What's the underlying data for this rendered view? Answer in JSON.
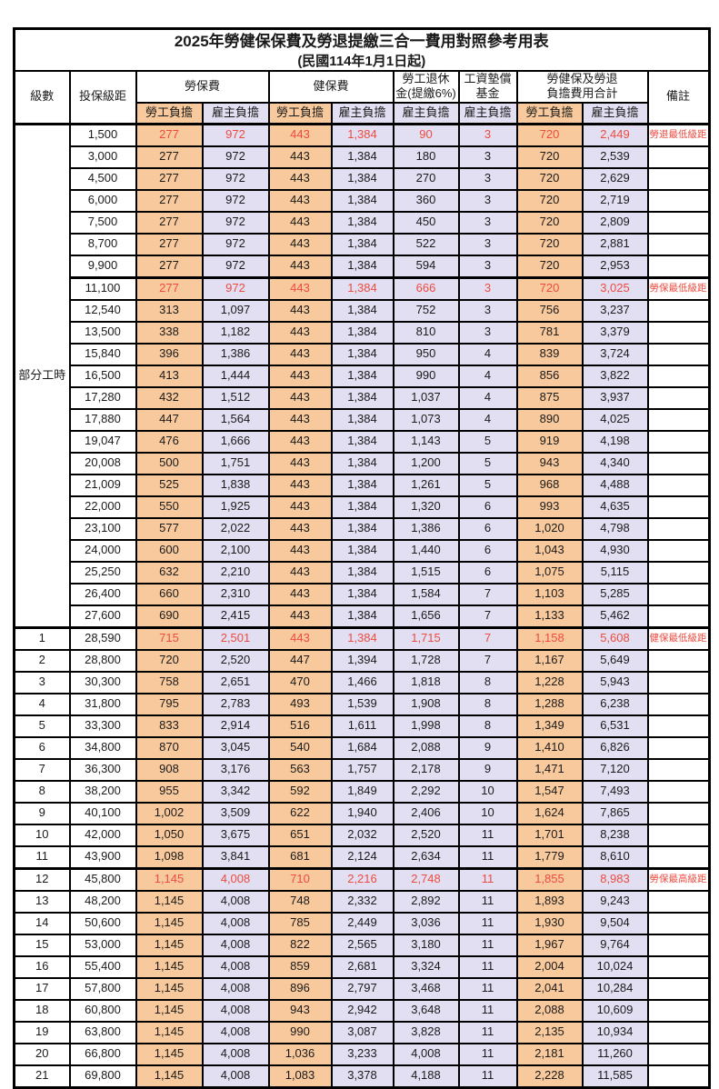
{
  "title": "2025年勞健保保費及勞退提繳三合一費用對照參考用表",
  "subtitle": "(民國114年1月1日起)",
  "colors": {
    "employee_col_bg": "#f8c99c",
    "employer_col_bg": "#e2dff2",
    "highlight_red": "#ee4b40",
    "border": "#000000"
  },
  "header": {
    "level": "級數",
    "bracket": "投保級距",
    "labor_insurance": "勞保費",
    "health_insurance": "健保費",
    "pension_line1": "勞工退休",
    "pension_line2": "金(提繳6%)",
    "wage_fund_line1": "工資墊償",
    "wage_fund_line2": "基金",
    "total_line1": "勞健保及勞退",
    "total_line2": "負擔費用合計",
    "employee": "勞工負擔",
    "employer": "雇主負擔",
    "remark": "備註"
  },
  "part_time_label": "部分工時",
  "part_time_row_count": 23,
  "rows": [
    {
      "level": "",
      "bracket": "1,500",
      "li_emp": "277",
      "li_er": "972",
      "hi_emp": "443",
      "hi_er": "1,384",
      "pension": "90",
      "fund": "3",
      "tot_emp": "720",
      "tot_er": "2,449",
      "remark": "勞退最低級距",
      "red": true
    },
    {
      "level": "",
      "bracket": "3,000",
      "li_emp": "277",
      "li_er": "972",
      "hi_emp": "443",
      "hi_er": "1,384",
      "pension": "180",
      "fund": "3",
      "tot_emp": "720",
      "tot_er": "2,539",
      "remark": "",
      "red": false
    },
    {
      "level": "",
      "bracket": "4,500",
      "li_emp": "277",
      "li_er": "972",
      "hi_emp": "443",
      "hi_er": "1,384",
      "pension": "270",
      "fund": "3",
      "tot_emp": "720",
      "tot_er": "2,629",
      "remark": "",
      "red": false
    },
    {
      "level": "",
      "bracket": "6,000",
      "li_emp": "277",
      "li_er": "972",
      "hi_emp": "443",
      "hi_er": "1,384",
      "pension": "360",
      "fund": "3",
      "tot_emp": "720",
      "tot_er": "2,719",
      "remark": "",
      "red": false
    },
    {
      "level": "",
      "bracket": "7,500",
      "li_emp": "277",
      "li_er": "972",
      "hi_emp": "443",
      "hi_er": "1,384",
      "pension": "450",
      "fund": "3",
      "tot_emp": "720",
      "tot_er": "2,809",
      "remark": "",
      "red": false
    },
    {
      "level": "",
      "bracket": "8,700",
      "li_emp": "277",
      "li_er": "972",
      "hi_emp": "443",
      "hi_er": "1,384",
      "pension": "522",
      "fund": "3",
      "tot_emp": "720",
      "tot_er": "2,881",
      "remark": "",
      "red": false
    },
    {
      "level": "",
      "bracket": "9,900",
      "li_emp": "277",
      "li_er": "972",
      "hi_emp": "443",
      "hi_er": "1,384",
      "pension": "594",
      "fund": "3",
      "tot_emp": "720",
      "tot_er": "2,953",
      "remark": "",
      "red": false
    },
    {
      "level": "",
      "bracket": "11,100",
      "li_emp": "277",
      "li_er": "972",
      "hi_emp": "443",
      "hi_er": "1,384",
      "pension": "666",
      "fund": "3",
      "tot_emp": "720",
      "tot_er": "3,025",
      "remark": "勞保最低級距",
      "red": true
    },
    {
      "level": "",
      "bracket": "12,540",
      "li_emp": "313",
      "li_er": "1,097",
      "hi_emp": "443",
      "hi_er": "1,384",
      "pension": "752",
      "fund": "3",
      "tot_emp": "756",
      "tot_er": "3,237",
      "remark": "",
      "red": false
    },
    {
      "level": "",
      "bracket": "13,500",
      "li_emp": "338",
      "li_er": "1,182",
      "hi_emp": "443",
      "hi_er": "1,384",
      "pension": "810",
      "fund": "3",
      "tot_emp": "781",
      "tot_er": "3,379",
      "remark": "",
      "red": false
    },
    {
      "level": "",
      "bracket": "15,840",
      "li_emp": "396",
      "li_er": "1,386",
      "hi_emp": "443",
      "hi_er": "1,384",
      "pension": "950",
      "fund": "4",
      "tot_emp": "839",
      "tot_er": "3,724",
      "remark": "",
      "red": false
    },
    {
      "level": "",
      "bracket": "16,500",
      "li_emp": "413",
      "li_er": "1,444",
      "hi_emp": "443",
      "hi_er": "1,384",
      "pension": "990",
      "fund": "4",
      "tot_emp": "856",
      "tot_er": "3,822",
      "remark": "",
      "red": false
    },
    {
      "level": "",
      "bracket": "17,280",
      "li_emp": "432",
      "li_er": "1,512",
      "hi_emp": "443",
      "hi_er": "1,384",
      "pension": "1,037",
      "fund": "4",
      "tot_emp": "875",
      "tot_er": "3,937",
      "remark": "",
      "red": false
    },
    {
      "level": "",
      "bracket": "17,880",
      "li_emp": "447",
      "li_er": "1,564",
      "hi_emp": "443",
      "hi_er": "1,384",
      "pension": "1,073",
      "fund": "4",
      "tot_emp": "890",
      "tot_er": "4,025",
      "remark": "",
      "red": false
    },
    {
      "level": "",
      "bracket": "19,047",
      "li_emp": "476",
      "li_er": "1,666",
      "hi_emp": "443",
      "hi_er": "1,384",
      "pension": "1,143",
      "fund": "5",
      "tot_emp": "919",
      "tot_er": "4,198",
      "remark": "",
      "red": false
    },
    {
      "level": "",
      "bracket": "20,008",
      "li_emp": "500",
      "li_er": "1,751",
      "hi_emp": "443",
      "hi_er": "1,384",
      "pension": "1,200",
      "fund": "5",
      "tot_emp": "943",
      "tot_er": "4,340",
      "remark": "",
      "red": false
    },
    {
      "level": "",
      "bracket": "21,009",
      "li_emp": "525",
      "li_er": "1,838",
      "hi_emp": "443",
      "hi_er": "1,384",
      "pension": "1,261",
      "fund": "5",
      "tot_emp": "968",
      "tot_er": "4,488",
      "remark": "",
      "red": false
    },
    {
      "level": "",
      "bracket": "22,000",
      "li_emp": "550",
      "li_er": "1,925",
      "hi_emp": "443",
      "hi_er": "1,384",
      "pension": "1,320",
      "fund": "6",
      "tot_emp": "993",
      "tot_er": "4,635",
      "remark": "",
      "red": false
    },
    {
      "level": "",
      "bracket": "23,100",
      "li_emp": "577",
      "li_er": "2,022",
      "hi_emp": "443",
      "hi_er": "1,384",
      "pension": "1,386",
      "fund": "6",
      "tot_emp": "1,020",
      "tot_er": "4,798",
      "remark": "",
      "red": false
    },
    {
      "level": "",
      "bracket": "24,000",
      "li_emp": "600",
      "li_er": "2,100",
      "hi_emp": "443",
      "hi_er": "1,384",
      "pension": "1,440",
      "fund": "6",
      "tot_emp": "1,043",
      "tot_er": "4,930",
      "remark": "",
      "red": false
    },
    {
      "level": "",
      "bracket": "25,250",
      "li_emp": "632",
      "li_er": "2,210",
      "hi_emp": "443",
      "hi_er": "1,384",
      "pension": "1,515",
      "fund": "6",
      "tot_emp": "1,075",
      "tot_er": "5,115",
      "remark": "",
      "red": false
    },
    {
      "level": "",
      "bracket": "26,400",
      "li_emp": "660",
      "li_er": "2,310",
      "hi_emp": "443",
      "hi_er": "1,384",
      "pension": "1,584",
      "fund": "7",
      "tot_emp": "1,103",
      "tot_er": "5,285",
      "remark": "",
      "red": false
    },
    {
      "level": "",
      "bracket": "27,600",
      "li_emp": "690",
      "li_er": "2,415",
      "hi_emp": "443",
      "hi_er": "1,384",
      "pension": "1,656",
      "fund": "7",
      "tot_emp": "1,133",
      "tot_er": "5,462",
      "remark": "",
      "red": false
    },
    {
      "level": "1",
      "bracket": "28,590",
      "li_emp": "715",
      "li_er": "2,501",
      "hi_emp": "443",
      "hi_er": "1,384",
      "pension": "1,715",
      "fund": "7",
      "tot_emp": "1,158",
      "tot_er": "5,608",
      "remark": "健保最低級距",
      "red": true
    },
    {
      "level": "2",
      "bracket": "28,800",
      "li_emp": "720",
      "li_er": "2,520",
      "hi_emp": "447",
      "hi_er": "1,394",
      "pension": "1,728",
      "fund": "7",
      "tot_emp": "1,167",
      "tot_er": "5,649",
      "remark": "",
      "red": false
    },
    {
      "level": "3",
      "bracket": "30,300",
      "li_emp": "758",
      "li_er": "2,651",
      "hi_emp": "470",
      "hi_er": "1,466",
      "pension": "1,818",
      "fund": "8",
      "tot_emp": "1,228",
      "tot_er": "5,943",
      "remark": "",
      "red": false
    },
    {
      "level": "4",
      "bracket": "31,800",
      "li_emp": "795",
      "li_er": "2,783",
      "hi_emp": "493",
      "hi_er": "1,539",
      "pension": "1,908",
      "fund": "8",
      "tot_emp": "1,288",
      "tot_er": "6,238",
      "remark": "",
      "red": false
    },
    {
      "level": "5",
      "bracket": "33,300",
      "li_emp": "833",
      "li_er": "2,914",
      "hi_emp": "516",
      "hi_er": "1,611",
      "pension": "1,998",
      "fund": "8",
      "tot_emp": "1,349",
      "tot_er": "6,531",
      "remark": "",
      "red": false
    },
    {
      "level": "6",
      "bracket": "34,800",
      "li_emp": "870",
      "li_er": "3,045",
      "hi_emp": "540",
      "hi_er": "1,684",
      "pension": "2,088",
      "fund": "9",
      "tot_emp": "1,410",
      "tot_er": "6,826",
      "remark": "",
      "red": false
    },
    {
      "level": "7",
      "bracket": "36,300",
      "li_emp": "908",
      "li_er": "3,176",
      "hi_emp": "563",
      "hi_er": "1,757",
      "pension": "2,178",
      "fund": "9",
      "tot_emp": "1,471",
      "tot_er": "7,120",
      "remark": "",
      "red": false
    },
    {
      "level": "8",
      "bracket": "38,200",
      "li_emp": "955",
      "li_er": "3,342",
      "hi_emp": "592",
      "hi_er": "1,849",
      "pension": "2,292",
      "fund": "10",
      "tot_emp": "1,547",
      "tot_er": "7,493",
      "remark": "",
      "red": false
    },
    {
      "level": "9",
      "bracket": "40,100",
      "li_emp": "1,002",
      "li_er": "3,509",
      "hi_emp": "622",
      "hi_er": "1,940",
      "pension": "2,406",
      "fund": "10",
      "tot_emp": "1,624",
      "tot_er": "7,865",
      "remark": "",
      "red": false
    },
    {
      "level": "10",
      "bracket": "42,000",
      "li_emp": "1,050",
      "li_er": "3,675",
      "hi_emp": "651",
      "hi_er": "2,032",
      "pension": "2,520",
      "fund": "11",
      "tot_emp": "1,701",
      "tot_er": "8,238",
      "remark": "",
      "red": false
    },
    {
      "level": "11",
      "bracket": "43,900",
      "li_emp": "1,098",
      "li_er": "3,841",
      "hi_emp": "681",
      "hi_er": "2,124",
      "pension": "2,634",
      "fund": "11",
      "tot_emp": "1,779",
      "tot_er": "8,610",
      "remark": "",
      "red": false
    },
    {
      "level": "12",
      "bracket": "45,800",
      "li_emp": "1,145",
      "li_er": "4,008",
      "hi_emp": "710",
      "hi_er": "2,216",
      "pension": "2,748",
      "fund": "11",
      "tot_emp": "1,855",
      "tot_er": "8,983",
      "remark": "勞保最高級距",
      "red": true
    },
    {
      "level": "13",
      "bracket": "48,200",
      "li_emp": "1,145",
      "li_er": "4,008",
      "hi_emp": "748",
      "hi_er": "2,332",
      "pension": "2,892",
      "fund": "11",
      "tot_emp": "1,893",
      "tot_er": "9,243",
      "remark": "",
      "red": false
    },
    {
      "level": "14",
      "bracket": "50,600",
      "li_emp": "1,145",
      "li_er": "4,008",
      "hi_emp": "785",
      "hi_er": "2,449",
      "pension": "3,036",
      "fund": "11",
      "tot_emp": "1,930",
      "tot_er": "9,504",
      "remark": "",
      "red": false
    },
    {
      "level": "15",
      "bracket": "53,000",
      "li_emp": "1,145",
      "li_er": "4,008",
      "hi_emp": "822",
      "hi_er": "2,565",
      "pension": "3,180",
      "fund": "11",
      "tot_emp": "1,967",
      "tot_er": "9,764",
      "remark": "",
      "red": false
    },
    {
      "level": "16",
      "bracket": "55,400",
      "li_emp": "1,145",
      "li_er": "4,008",
      "hi_emp": "859",
      "hi_er": "2,681",
      "pension": "3,324",
      "fund": "11",
      "tot_emp": "2,004",
      "tot_er": "10,024",
      "remark": "",
      "red": false
    },
    {
      "level": "17",
      "bracket": "57,800",
      "li_emp": "1,145",
      "li_er": "4,008",
      "hi_emp": "896",
      "hi_er": "2,797",
      "pension": "3,468",
      "fund": "11",
      "tot_emp": "2,041",
      "tot_er": "10,284",
      "remark": "",
      "red": false
    },
    {
      "level": "18",
      "bracket": "60,800",
      "li_emp": "1,145",
      "li_er": "4,008",
      "hi_emp": "943",
      "hi_er": "2,942",
      "pension": "3,648",
      "fund": "11",
      "tot_emp": "2,088",
      "tot_er": "10,609",
      "remark": "",
      "red": false
    },
    {
      "level": "19",
      "bracket": "63,800",
      "li_emp": "1,145",
      "li_er": "4,008",
      "hi_emp": "990",
      "hi_er": "3,087",
      "pension": "3,828",
      "fund": "11",
      "tot_emp": "2,135",
      "tot_er": "10,934",
      "remark": "",
      "red": false
    },
    {
      "level": "20",
      "bracket": "66,800",
      "li_emp": "1,145",
      "li_er": "4,008",
      "hi_emp": "1,036",
      "hi_er": "3,233",
      "pension": "4,008",
      "fund": "11",
      "tot_emp": "2,181",
      "tot_er": "11,260",
      "remark": "",
      "red": false
    },
    {
      "level": "21",
      "bracket": "69,800",
      "li_emp": "1,145",
      "li_er": "4,008",
      "hi_emp": "1,083",
      "hi_er": "3,378",
      "pension": "4,188",
      "fund": "11",
      "tot_emp": "2,228",
      "tot_er": "11,585",
      "remark": "",
      "red": false
    }
  ]
}
